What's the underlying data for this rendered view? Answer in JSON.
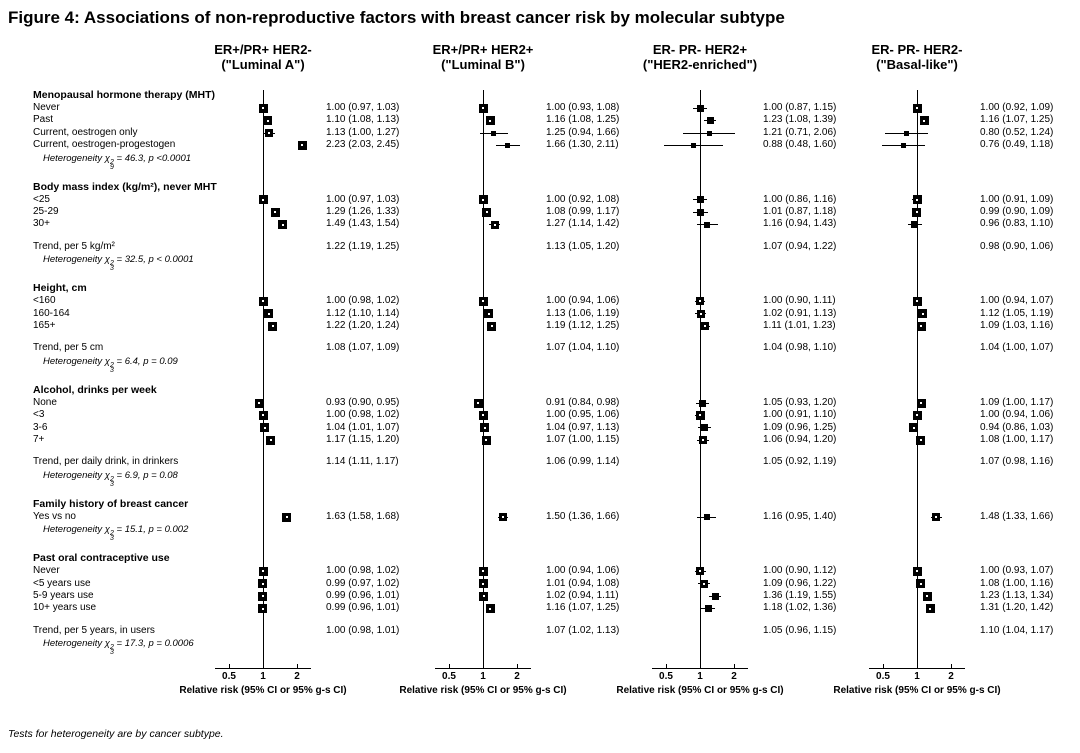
{
  "figure": {
    "title": "Figure 4: Associations of non-reproductive factors with breast cancer risk by molecular subtype",
    "footnote": "Tests for heterogeneity are by cancer subtype."
  },
  "columns": [
    {
      "title_line1": "ER+/PR+ HER2-",
      "title_line2": "(\"Luminal A\")"
    },
    {
      "title_line1": "ER+/PR+ HER2+",
      "title_line2": "(\"Luminal B\")"
    },
    {
      "title_line1": "ER- PR- HER2+",
      "title_line2": "(\"HER2-enriched\")"
    },
    {
      "title_line1": "ER- PR- HER2-",
      "title_line2": "(\"Basal-like\")"
    }
  ],
  "axis": {
    "scale": "log",
    "tick_values": [
      0.5,
      1,
      2
    ],
    "tick_labels": [
      "0.5",
      "1",
      "2"
    ],
    "label": "Relative risk (95% CI or 95% g-s CI)"
  },
  "colors": {
    "marker": "#000000",
    "text": "#000000",
    "background": "#ffffff"
  },
  "chart_data": {
    "type": "forest",
    "estimate_format": "RR (95% CI): [estimate, lower, upper] per subtype column",
    "subtype_order": [
      "ER+/PR+ HER2- (Luminal A)",
      "ER+/PR+ HER2+ (Luminal B)",
      "ER- PR- HER2+ (HER2-enriched)",
      "ER- PR- HER2- (Basal-like)"
    ],
    "sections": [
      {
        "header": "Menopausal hormone therapy (MHT)",
        "rows": [
          {
            "label": "Never",
            "estimates": [
              [
                1.0,
                0.97,
                1.03
              ],
              [
                1.0,
                0.93,
                1.08
              ],
              [
                1.0,
                0.87,
                1.15
              ],
              [
                1.0,
                0.92,
                1.09
              ]
            ]
          },
          {
            "label": "Past",
            "estimates": [
              [
                1.1,
                1.08,
                1.13
              ],
              [
                1.16,
                1.08,
                1.25
              ],
              [
                1.23,
                1.08,
                1.39
              ],
              [
                1.16,
                1.07,
                1.25
              ]
            ]
          },
          {
            "label": "Current, oestrogen only",
            "estimates": [
              [
                1.13,
                1.0,
                1.27
              ],
              [
                1.25,
                0.94,
                1.66
              ],
              [
                1.21,
                0.71,
                2.06
              ],
              [
                0.8,
                0.52,
                1.24
              ]
            ]
          },
          {
            "label": "Current, oestrogen-progestogen",
            "estimates": [
              [
                2.23,
                2.03,
                2.45
              ],
              [
                1.66,
                1.3,
                2.11
              ],
              [
                0.88,
                0.48,
                1.6
              ],
              [
                0.76,
                0.49,
                1.18
              ]
            ]
          }
        ],
        "heterogeneity": {
          "prefix": "Heterogeneity",
          "chi_sup": "2",
          "chi_sub": "9",
          "value": "46.3",
          "p": "p <0.0001"
        }
      },
      {
        "header": "Body mass index (kg/m²), never MHT",
        "rows": [
          {
            "label": "<25",
            "estimates": [
              [
                1.0,
                0.97,
                1.03
              ],
              [
                1.0,
                0.92,
                1.08
              ],
              [
                1.0,
                0.86,
                1.16
              ],
              [
                1.0,
                0.91,
                1.09
              ]
            ]
          },
          {
            "label": "25-29",
            "estimates": [
              [
                1.29,
                1.26,
                1.33
              ],
              [
                1.08,
                0.99,
                1.17
              ],
              [
                1.01,
                0.87,
                1.18
              ],
              [
                0.99,
                0.9,
                1.09
              ]
            ]
          },
          {
            "label": "30+",
            "estimates": [
              [
                1.49,
                1.43,
                1.54
              ],
              [
                1.27,
                1.14,
                1.42
              ],
              [
                1.16,
                0.94,
                1.43
              ],
              [
                0.96,
                0.83,
                1.1
              ]
            ]
          }
        ],
        "trend": {
          "label": "Trend, per 5 kg/m²",
          "estimates": [
            [
              1.22,
              1.19,
              1.25
            ],
            [
              1.13,
              1.05,
              1.2
            ],
            [
              1.07,
              0.94,
              1.22
            ],
            [
              0.98,
              0.9,
              1.06
            ]
          ]
        },
        "heterogeneity": {
          "prefix": "Heterogeneity",
          "chi_sup": "2",
          "chi_sub": "3",
          "value": "32.5",
          "p": "p < 0.0001"
        }
      },
      {
        "header": "Height, cm",
        "rows": [
          {
            "label": "<160",
            "estimates": [
              [
                1.0,
                0.98,
                1.02
              ],
              [
                1.0,
                0.94,
                1.06
              ],
              [
                1.0,
                0.9,
                1.11
              ],
              [
                1.0,
                0.94,
                1.07
              ]
            ]
          },
          {
            "label": "160-164",
            "estimates": [
              [
                1.12,
                1.1,
                1.14
              ],
              [
                1.13,
                1.06,
                1.19
              ],
              [
                1.02,
                0.91,
                1.13
              ],
              [
                1.12,
                1.05,
                1.19
              ]
            ]
          },
          {
            "label": "165+",
            "estimates": [
              [
                1.22,
                1.2,
                1.24
              ],
              [
                1.19,
                1.12,
                1.25
              ],
              [
                1.11,
                1.01,
                1.23
              ],
              [
                1.09,
                1.03,
                1.16
              ]
            ]
          }
        ],
        "trend": {
          "label": "Trend, per 5 cm",
          "estimates": [
            [
              1.08,
              1.07,
              1.09
            ],
            [
              1.07,
              1.04,
              1.1
            ],
            [
              1.04,
              0.98,
              1.1
            ],
            [
              1.04,
              1.0,
              1.07
            ]
          ]
        },
        "heterogeneity": {
          "prefix": "Heterogeneity",
          "chi_sup": "2",
          "chi_sub": "3",
          "value": "6.4",
          "p": "p = 0.09"
        }
      },
      {
        "header": "Alcohol, drinks per week",
        "rows": [
          {
            "label": "None",
            "estimates": [
              [
                0.93,
                0.9,
                0.95
              ],
              [
                0.91,
                0.84,
                0.98
              ],
              [
                1.05,
                0.93,
                1.2
              ],
              [
                1.09,
                1.0,
                1.17
              ]
            ]
          },
          {
            "label": "<3",
            "estimates": [
              [
                1.0,
                0.98,
                1.02
              ],
              [
                1.0,
                0.95,
                1.06
              ],
              [
                1.0,
                0.91,
                1.1
              ],
              [
                1.0,
                0.94,
                1.06
              ]
            ]
          },
          {
            "label": "3-6",
            "estimates": [
              [
                1.04,
                1.01,
                1.07
              ],
              [
                1.04,
                0.97,
                1.13
              ],
              [
                1.09,
                0.96,
                1.25
              ],
              [
                0.94,
                0.86,
                1.03
              ]
            ]
          },
          {
            "label": "7+",
            "estimates": [
              [
                1.17,
                1.15,
                1.2
              ],
              [
                1.07,
                1.0,
                1.15
              ],
              [
                1.06,
                0.94,
                1.2
              ],
              [
                1.08,
                1.0,
                1.17
              ]
            ]
          }
        ],
        "trend": {
          "label": "Trend, per daily drink, in drinkers",
          "estimates": [
            [
              1.14,
              1.11,
              1.17
            ],
            [
              1.06,
              0.99,
              1.14
            ],
            [
              1.05,
              0.92,
              1.19
            ],
            [
              1.07,
              0.98,
              1.16
            ]
          ]
        },
        "heterogeneity": {
          "prefix": "Heterogeneity",
          "chi_sup": "2",
          "chi_sub": "3",
          "value": "6.9",
          "p": "p = 0.08"
        }
      },
      {
        "header": "Family history of breast cancer",
        "rows": [
          {
            "label": "Yes vs no",
            "estimates": [
              [
                1.63,
                1.58,
                1.68
              ],
              [
                1.5,
                1.36,
                1.66
              ],
              [
                1.16,
                0.95,
                1.4
              ],
              [
                1.48,
                1.33,
                1.66
              ]
            ]
          }
        ],
        "heterogeneity": {
          "prefix": "Heterogeneity",
          "chi_sup": "2",
          "chi_sub": "3",
          "value": "15.1",
          "p": "p = 0.002"
        }
      },
      {
        "header": "Past oral contraceptive use",
        "rows": [
          {
            "label": "Never",
            "estimates": [
              [
                1.0,
                0.98,
                1.02
              ],
              [
                1.0,
                0.94,
                1.06
              ],
              [
                1.0,
                0.9,
                1.12
              ],
              [
                1.0,
                0.93,
                1.07
              ]
            ]
          },
          {
            "label": "<5 years use",
            "estimates": [
              [
                0.99,
                0.97,
                1.02
              ],
              [
                1.01,
                0.94,
                1.08
              ],
              [
                1.09,
                0.96,
                1.22
              ],
              [
                1.08,
                1.0,
                1.16
              ]
            ]
          },
          {
            "label": "5-9 years use",
            "estimates": [
              [
                0.99,
                0.96,
                1.01
              ],
              [
                1.02,
                0.94,
                1.11
              ],
              [
                1.36,
                1.19,
                1.55
              ],
              [
                1.23,
                1.13,
                1.34
              ]
            ]
          },
          {
            "label": "10+ years use",
            "estimates": [
              [
                0.99,
                0.96,
                1.01
              ],
              [
                1.16,
                1.07,
                1.25
              ],
              [
                1.18,
                1.02,
                1.36
              ],
              [
                1.31,
                1.2,
                1.42
              ]
            ]
          }
        ],
        "trend": {
          "label": "Trend, per 5 years, in users",
          "estimates": [
            [
              1.0,
              0.98,
              1.01
            ],
            [
              1.07,
              1.02,
              1.13
            ],
            [
              1.05,
              0.96,
              1.15
            ],
            [
              1.1,
              1.04,
              1.17
            ]
          ]
        },
        "heterogeneity": {
          "prefix": "Heterogeneity",
          "chi_sup": "2",
          "chi_sub": "3",
          "value": "17.3",
          "p": "p = 0.0006"
        }
      }
    ]
  }
}
